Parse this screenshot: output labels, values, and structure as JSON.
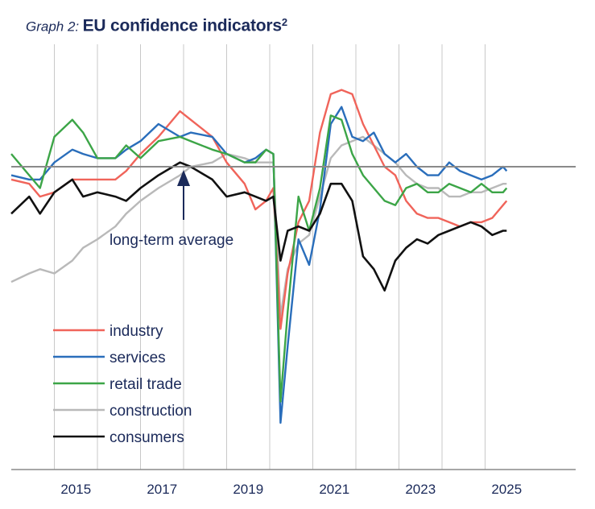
{
  "title": {
    "prefix": "Graph 2:",
    "main": "EU confidence indicators",
    "sup": "2"
  },
  "chart_data": {
    "type": "line",
    "title": "EU confidence indicators",
    "x_ticks": [
      "2015",
      "2017",
      "2019",
      "2021",
      "2023",
      "2025"
    ],
    "xlim": [
      "2014-01",
      "2025-12"
    ],
    "grid": "vertical gridlines at every year",
    "legend": "bottom-left",
    "annotation": "long-term average",
    "annotation_x": "2017-03",
    "series": [
      {
        "name": "industry",
        "color": "#f0645a",
        "values": [
          [
            "2014-01",
            -3
          ],
          [
            "2014-06",
            -4
          ],
          [
            "2014-09",
            -7
          ],
          [
            "2015-01",
            -6
          ],
          [
            "2015-06",
            -3
          ],
          [
            "2015-09",
            -3
          ],
          [
            "2016-01",
            -3
          ],
          [
            "2016-06",
            -3
          ],
          [
            "2016-09",
            -1
          ],
          [
            "2017-01",
            3
          ],
          [
            "2017-06",
            7
          ],
          [
            "2017-12",
            13
          ],
          [
            "2018-03",
            11
          ],
          [
            "2018-09",
            7
          ],
          [
            "2019-01",
            1
          ],
          [
            "2019-06",
            -4
          ],
          [
            "2019-09",
            -10
          ],
          [
            "2019-12",
            -8
          ],
          [
            "2020-02",
            -5
          ],
          [
            "2020-04",
            -38
          ],
          [
            "2020-06",
            -25
          ],
          [
            "2020-09",
            -13
          ],
          [
            "2020-12",
            -8
          ],
          [
            "2021-03",
            8
          ],
          [
            "2021-06",
            17
          ],
          [
            "2021-09",
            18
          ],
          [
            "2021-12",
            17
          ],
          [
            "2022-03",
            10
          ],
          [
            "2022-06",
            5
          ],
          [
            "2022-09",
            0
          ],
          [
            "2022-12",
            -2
          ],
          [
            "2023-03",
            -8
          ],
          [
            "2023-06",
            -11
          ],
          [
            "2023-09",
            -12
          ],
          [
            "2023-12",
            -12
          ],
          [
            "2024-03",
            -13
          ],
          [
            "2024-06",
            -14
          ],
          [
            "2024-09",
            -13
          ],
          [
            "2024-12",
            -13
          ],
          [
            "2025-03",
            -12
          ],
          [
            "2025-06",
            -9
          ],
          [
            "2025-07",
            -8
          ]
        ]
      },
      {
        "name": "services",
        "color": "#2a6ebb",
        "values": [
          [
            "2014-01",
            -2
          ],
          [
            "2014-06",
            -3
          ],
          [
            "2014-09",
            -3
          ],
          [
            "2015-01",
            1
          ],
          [
            "2015-06",
            4
          ],
          [
            "2015-09",
            3
          ],
          [
            "2016-01",
            2
          ],
          [
            "2016-06",
            2
          ],
          [
            "2016-09",
            4
          ],
          [
            "2017-01",
            6
          ],
          [
            "2017-06",
            10
          ],
          [
            "2017-12",
            7
          ],
          [
            "2018-03",
            8
          ],
          [
            "2018-09",
            7
          ],
          [
            "2019-01",
            3
          ],
          [
            "2019-06",
            1
          ],
          [
            "2019-09",
            2
          ],
          [
            "2019-12",
            4
          ],
          [
            "2020-02",
            3
          ],
          [
            "2020-04",
            -60
          ],
          [
            "2020-06",
            -42
          ],
          [
            "2020-09",
            -17
          ],
          [
            "2020-12",
            -23
          ],
          [
            "2021-03",
            -10
          ],
          [
            "2021-06",
            10
          ],
          [
            "2021-09",
            14
          ],
          [
            "2021-12",
            7
          ],
          [
            "2022-03",
            6
          ],
          [
            "2022-06",
            8
          ],
          [
            "2022-09",
            3
          ],
          [
            "2022-12",
            1
          ],
          [
            "2023-03",
            3
          ],
          [
            "2023-06",
            0
          ],
          [
            "2023-09",
            -2
          ],
          [
            "2023-12",
            -2
          ],
          [
            "2024-03",
            1
          ],
          [
            "2024-06",
            -1
          ],
          [
            "2024-09",
            -2
          ],
          [
            "2024-12",
            -3
          ],
          [
            "2025-03",
            -2
          ],
          [
            "2025-06",
            0
          ],
          [
            "2025-07",
            -1
          ]
        ]
      },
      {
        "name": "retail trade",
        "color": "#3ca547",
        "values": [
          [
            "2014-01",
            3
          ],
          [
            "2014-06",
            -2
          ],
          [
            "2014-09",
            -5
          ],
          [
            "2015-01",
            7
          ],
          [
            "2015-06",
            11
          ],
          [
            "2015-09",
            8
          ],
          [
            "2016-01",
            2
          ],
          [
            "2016-06",
            2
          ],
          [
            "2016-09",
            5
          ],
          [
            "2017-01",
            2
          ],
          [
            "2017-06",
            6
          ],
          [
            "2017-12",
            7
          ],
          [
            "2018-03",
            6
          ],
          [
            "2018-09",
            4
          ],
          [
            "2019-01",
            3
          ],
          [
            "2019-06",
            1
          ],
          [
            "2019-09",
            1
          ],
          [
            "2019-12",
            4
          ],
          [
            "2020-02",
            3
          ],
          [
            "2020-04",
            -55
          ],
          [
            "2020-06",
            -34
          ],
          [
            "2020-09",
            -7
          ],
          [
            "2020-12",
            -15
          ],
          [
            "2021-03",
            -5
          ],
          [
            "2021-06",
            12
          ],
          [
            "2021-09",
            11
          ],
          [
            "2021-12",
            3
          ],
          [
            "2022-03",
            -2
          ],
          [
            "2022-06",
            -5
          ],
          [
            "2022-09",
            -8
          ],
          [
            "2022-12",
            -9
          ],
          [
            "2023-03",
            -5
          ],
          [
            "2023-06",
            -4
          ],
          [
            "2023-09",
            -6
          ],
          [
            "2023-12",
            -6
          ],
          [
            "2024-03",
            -4
          ],
          [
            "2024-06",
            -5
          ],
          [
            "2024-09",
            -6
          ],
          [
            "2024-12",
            -4
          ],
          [
            "2025-03",
            -6
          ],
          [
            "2025-06",
            -6
          ],
          [
            "2025-07",
            -5
          ]
        ]
      },
      {
        "name": "construction",
        "color": "#b9b9b9",
        "values": [
          [
            "2014-01",
            -27
          ],
          [
            "2014-06",
            -25
          ],
          [
            "2014-09",
            -24
          ],
          [
            "2015-01",
            -25
          ],
          [
            "2015-06",
            -22
          ],
          [
            "2015-09",
            -19
          ],
          [
            "2016-01",
            -17
          ],
          [
            "2016-06",
            -14
          ],
          [
            "2016-09",
            -11
          ],
          [
            "2017-01",
            -8
          ],
          [
            "2017-06",
            -5
          ],
          [
            "2017-12",
            -2
          ],
          [
            "2018-03",
            0
          ],
          [
            "2018-09",
            1
          ],
          [
            "2019-01",
            3
          ],
          [
            "2019-06",
            2
          ],
          [
            "2019-09",
            1
          ],
          [
            "2019-12",
            1
          ],
          [
            "2020-02",
            1
          ],
          [
            "2020-04",
            -35
          ],
          [
            "2020-06",
            -24
          ],
          [
            "2020-09",
            -18
          ],
          [
            "2020-12",
            -16
          ],
          [
            "2021-03",
            -7
          ],
          [
            "2021-06",
            2
          ],
          [
            "2021-09",
            5
          ],
          [
            "2021-12",
            6
          ],
          [
            "2022-03",
            7
          ],
          [
            "2022-06",
            5
          ],
          [
            "2022-09",
            3
          ],
          [
            "2022-12",
            1
          ],
          [
            "2023-03",
            -2
          ],
          [
            "2023-06",
            -4
          ],
          [
            "2023-09",
            -5
          ],
          [
            "2023-12",
            -5
          ],
          [
            "2024-03",
            -7
          ],
          [
            "2024-06",
            -7
          ],
          [
            "2024-09",
            -6
          ],
          [
            "2024-12",
            -6
          ],
          [
            "2025-03",
            -5
          ],
          [
            "2025-06",
            -4
          ],
          [
            "2025-07",
            -4
          ]
        ]
      },
      {
        "name": "consumers",
        "color": "#111111",
        "values": [
          [
            "2014-01",
            -11
          ],
          [
            "2014-06",
            -7
          ],
          [
            "2014-09",
            -11
          ],
          [
            "2015-01",
            -6
          ],
          [
            "2015-06",
            -3
          ],
          [
            "2015-09",
            -7
          ],
          [
            "2016-01",
            -6
          ],
          [
            "2016-06",
            -7
          ],
          [
            "2016-09",
            -8
          ],
          [
            "2017-01",
            -5
          ],
          [
            "2017-06",
            -2
          ],
          [
            "2017-12",
            1
          ],
          [
            "2018-03",
            0
          ],
          [
            "2018-09",
            -3
          ],
          [
            "2019-01",
            -7
          ],
          [
            "2019-06",
            -6
          ],
          [
            "2019-09",
            -7
          ],
          [
            "2019-12",
            -8
          ],
          [
            "2020-02",
            -7
          ],
          [
            "2020-04",
            -22
          ],
          [
            "2020-06",
            -15
          ],
          [
            "2020-09",
            -14
          ],
          [
            "2020-12",
            -15
          ],
          [
            "2021-03",
            -11
          ],
          [
            "2021-06",
            -4
          ],
          [
            "2021-09",
            -4
          ],
          [
            "2021-12",
            -8
          ],
          [
            "2022-03",
            -21
          ],
          [
            "2022-06",
            -24
          ],
          [
            "2022-09",
            -29
          ],
          [
            "2022-12",
            -22
          ],
          [
            "2023-03",
            -19
          ],
          [
            "2023-06",
            -17
          ],
          [
            "2023-09",
            -18
          ],
          [
            "2023-12",
            -16
          ],
          [
            "2024-03",
            -15
          ],
          [
            "2024-06",
            -14
          ],
          [
            "2024-09",
            -13
          ],
          [
            "2024-12",
            -14
          ],
          [
            "2025-03",
            -16
          ],
          [
            "2025-06",
            -15
          ],
          [
            "2025-07",
            -15
          ]
        ]
      }
    ]
  }
}
